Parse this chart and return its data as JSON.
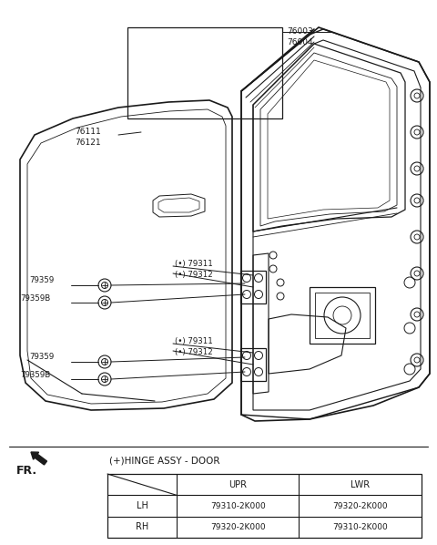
{
  "bg_color": "#ffffff",
  "line_color": "#1a1a1a",
  "text_color": "#1a1a1a",
  "fig_width": 4.8,
  "fig_height": 5.98,
  "label_76003": "76003",
  "label_76004": "76004",
  "label_76111": "76111",
  "label_76121": "76121",
  "label_79311": "(•) 79311",
  "label_79312": "(•) 79312",
  "label_79359": "79359",
  "label_79359B": "79359B",
  "hinge_title": "(+)HINGE ASSY - DOOR",
  "fr_label": "FR.",
  "table_headers": [
    "",
    "UPR",
    "LWR"
  ],
  "table_row1": [
    "LH",
    "79310-2K000",
    "79320-2K000"
  ],
  "table_row2": [
    "RH",
    "79320-2K000",
    "79310-2K000"
  ]
}
